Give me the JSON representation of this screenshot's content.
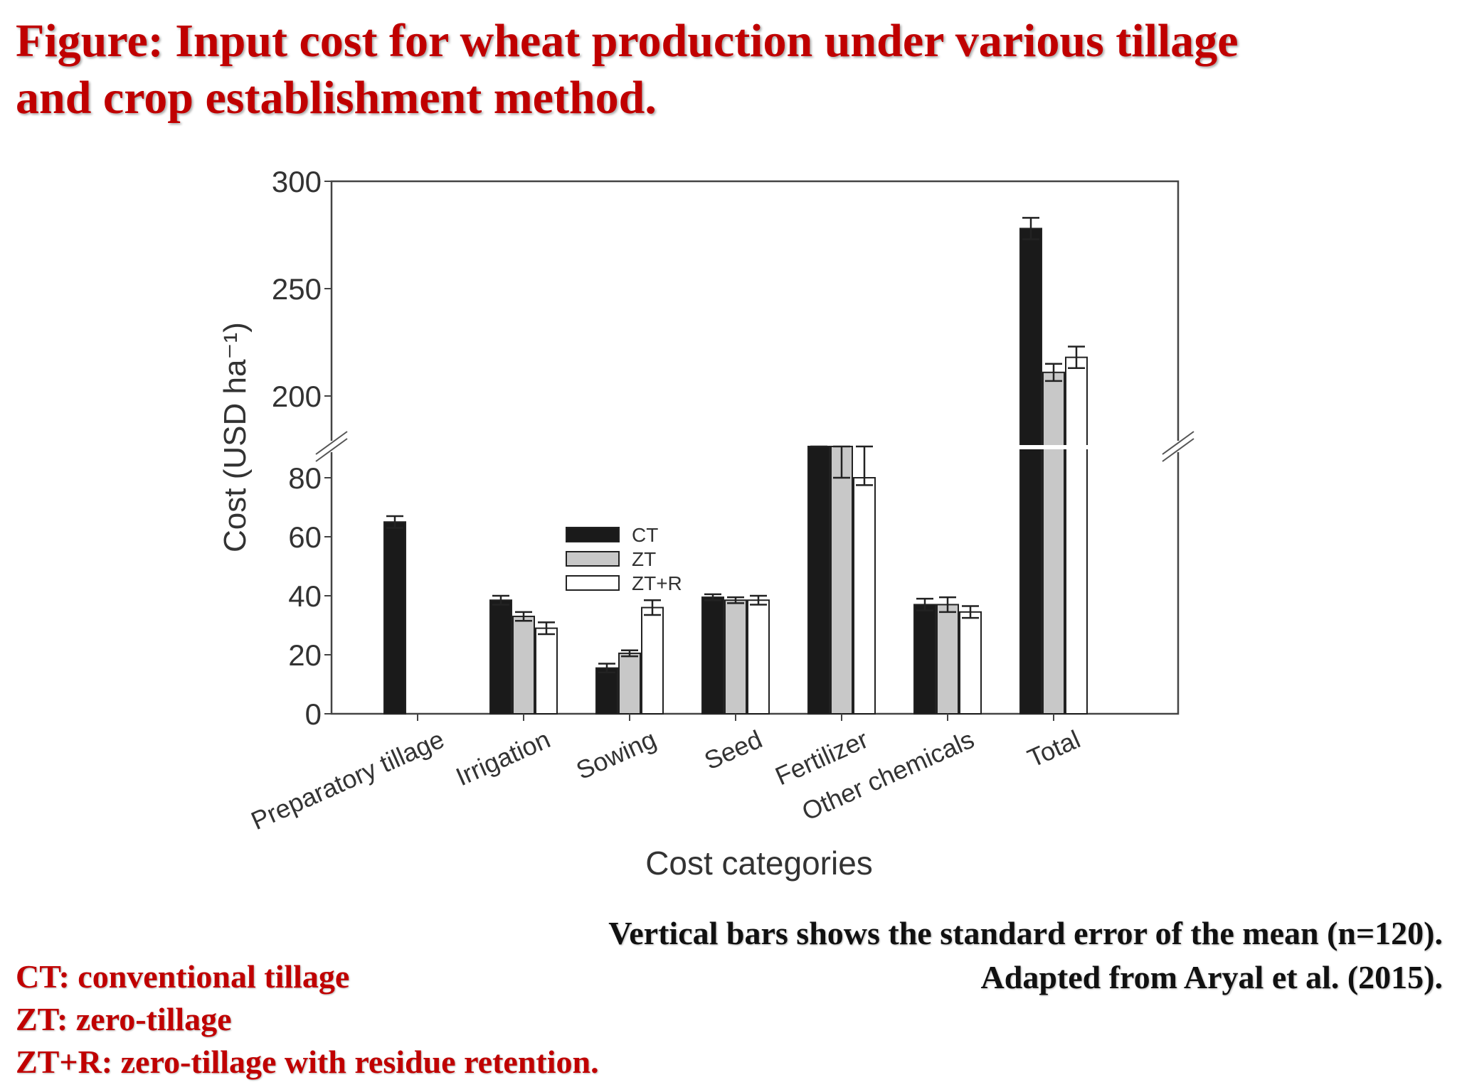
{
  "title": {
    "line1": "Figure: Input cost for wheat production under various tillage",
    "line2": "and crop establishment method."
  },
  "colors": {
    "title": "#c00000",
    "CT": "#1a1a1a",
    "ZT": "#c8c8c8",
    "ZT+R": "#ffffff"
  },
  "chart_data": {
    "type": "bar",
    "xlabel": "Cost categories",
    "ylabel": "Cost (USD ha⁻¹)",
    "categories": [
      "Preparatory tillage",
      "Irrigation",
      "Sowing",
      "Seed",
      "Fertilizer",
      "Other chemicals",
      "Total"
    ],
    "series": [
      {
        "name": "CT",
        "values": [
          65,
          38.5,
          15.5,
          39.5,
          84,
          37,
          278
        ],
        "errors": [
          2,
          1.5,
          1.5,
          1,
          2,
          2,
          5
        ]
      },
      {
        "name": "ZT",
        "values": [
          null,
          33,
          20.5,
          38.5,
          82.5,
          37,
          211
        ],
        "errors": [
          null,
          1.5,
          1,
          1,
          2.5,
          2.5,
          4
        ]
      },
      {
        "name": "ZT+R",
        "values": [
          null,
          29,
          36,
          38.5,
          80,
          34.5,
          218
        ],
        "errors": [
          null,
          2,
          2.5,
          1.5,
          2.5,
          2,
          5
        ]
      }
    ],
    "y_axis": {
      "broken": true,
      "lower_range": [
        0,
        80
      ],
      "upper_range": [
        200,
        300
      ],
      "lower_ticks": [
        0,
        20,
        40,
        60,
        80
      ],
      "upper_ticks": [
        200,
        250,
        300
      ]
    },
    "legend": {
      "placement": "center",
      "entries": [
        "CT",
        "ZT",
        "ZT+R"
      ]
    },
    "grid": false
  },
  "footnotes": {
    "std_error": "Vertical bars shows the standard error of the mean (n=120).",
    "source": "Adapted from Aryal et al. (2015)."
  },
  "abbreviations": [
    "CT: conventional tillage",
    "ZT: zero-tillage",
    "ZT+R: zero-tillage with residue retention."
  ]
}
